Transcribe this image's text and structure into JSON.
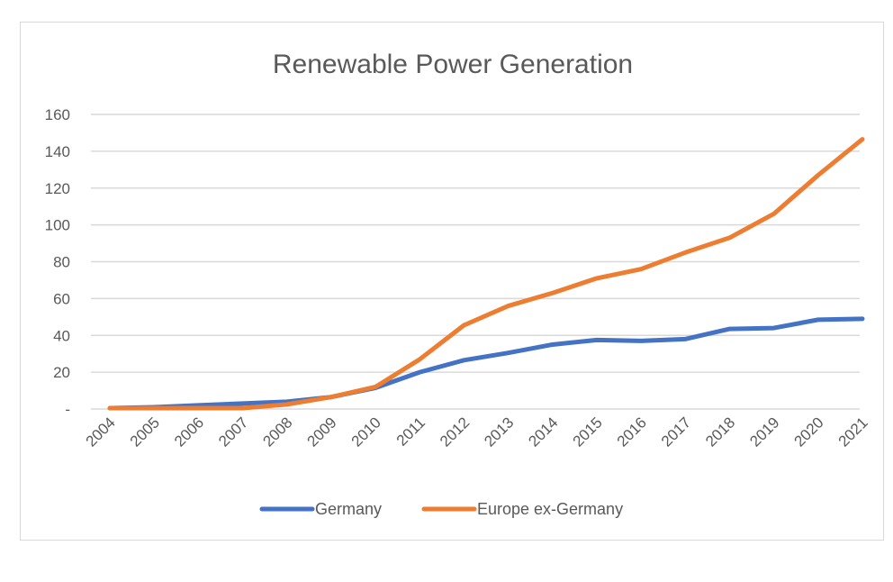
{
  "chart_data": {
    "type": "line",
    "title": "Renewable Power Generation",
    "xlabel": "",
    "ylabel": "",
    "categories": [
      "2004",
      "2005",
      "2006",
      "2007",
      "2008",
      "2009",
      "2010",
      "2011",
      "2012",
      "2013",
      "2014",
      "2015",
      "2016",
      "2017",
      "2018",
      "2019",
      "2020",
      "2021"
    ],
    "ylim": [
      0,
      160
    ],
    "yticks": [
      0,
      20,
      40,
      60,
      80,
      100,
      120,
      140,
      160
    ],
    "ytick_labels": [
      "-",
      "20",
      "40",
      "60",
      "80",
      "100",
      "120",
      "140",
      "160"
    ],
    "grid": true,
    "legend_position": "bottom",
    "series": [
      {
        "name": "Germany",
        "color": "#4472c4",
        "values": [
          0.5,
          1,
          2,
          3,
          4,
          6.5,
          11.5,
          20,
          26.5,
          30.5,
          35,
          37.5,
          37,
          38,
          43.5,
          44,
          48.5,
          49
        ]
      },
      {
        "name": "Europe ex-Germany",
        "color": "#ed7d31",
        "values": [
          0.5,
          0.5,
          0.5,
          0.5,
          2.5,
          6.5,
          12,
          27,
          45.5,
          56,
          63,
          71,
          76,
          85,
          93,
          106,
          127,
          146.5
        ]
      }
    ]
  }
}
